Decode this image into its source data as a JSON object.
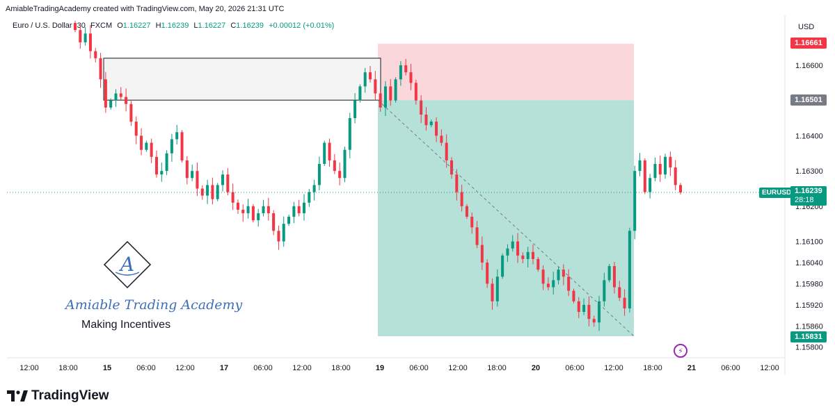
{
  "header": {
    "attribution": "AmiableTradingAcademy created with TradingView.com, May 20, 2026 21:31 UTC"
  },
  "legend": {
    "symbol": "Euro / U.S. Dollar",
    "interval": "30",
    "exchange": "FXCM",
    "open_label": "O",
    "open": "1.16227",
    "high_label": "H",
    "high": "1.16239",
    "low_label": "L",
    "low": "1.16227",
    "close_label": "C",
    "close": "1.16239",
    "change": "+0.00012 (+0.01%)"
  },
  "price_axis": {
    "currency": "USD",
    "ticks": [
      "1.16600",
      "1.16500",
      "1.16400",
      "1.16300",
      "1.16200",
      "1.16100",
      "1.16040",
      "1.15980",
      "1.15920",
      "1.15860",
      "1.15800"
    ],
    "stop_tag": "1.16661",
    "entry_tag": "1.16501",
    "target_tag": "1.15831",
    "symbol_tag": "EURUSD",
    "last_price_tag": "1.16239",
    "countdown": "28:18"
  },
  "time_axis": {
    "labels": [
      "12:00",
      "18:00",
      "15",
      "06:00",
      "12:00",
      "17",
      "06:00",
      "12:00",
      "18:00",
      "19",
      "06:00",
      "12:00",
      "18:00",
      "20",
      "06:00",
      "12:00",
      "18:00",
      "21",
      "06:00",
      "12:00"
    ]
  },
  "watermark": {
    "logo_letter": "A",
    "name": "Amiable Trading Academy",
    "tagline": "Making Incentives"
  },
  "branding": {
    "name": "TradingView"
  },
  "colors": {
    "up": "#089981",
    "down": "#f23645",
    "stop_zone": "#f7c9ce",
    "target_zone": "#a8dcd2",
    "supply_box_fill": "#f4f4f4",
    "last_price_line": "#089981",
    "entry_tag_bg": "#787b86"
  },
  "chart_data": {
    "type": "candlestick",
    "symbol": "EURUSD",
    "timeframe": "30",
    "ylim": [
      1.15778,
      1.167
    ],
    "x_labels": [
      "12:00",
      "18:00",
      "15",
      "06:00",
      "12:00",
      "17",
      "06:00",
      "12:00",
      "18:00",
      "19",
      "06:00",
      "12:00",
      "18:00",
      "20",
      "06:00",
      "12:00",
      "18:00",
      "21",
      "06:00",
      "12:00"
    ],
    "close_path": [
      1.167,
      1.16665,
      1.1669,
      1.1664,
      1.1662,
      1.1656,
      1.1648,
      1.165,
      1.1652,
      1.1651,
      1.1649,
      1.1644,
      1.164,
      1.1636,
      1.1638,
      1.1634,
      1.1629,
      1.163,
      1.1635,
      1.1639,
      1.1641,
      1.1633,
      1.1628,
      1.163,
      1.1625,
      1.1623,
      1.1626,
      1.1622,
      1.1626,
      1.1629,
      1.1624,
      1.1621,
      1.1619,
      1.1618,
      1.162,
      1.1616,
      1.1618,
      1.162,
      1.1618,
      1.1613,
      1.161,
      1.1615,
      1.1617,
      1.162,
      1.1618,
      1.1621,
      1.1624,
      1.1626,
      1.1632,
      1.1638,
      1.1633,
      1.163,
      1.1628,
      1.1636,
      1.1645,
      1.165,
      1.1654,
      1.1658,
      1.1656,
      1.1652,
      1.1648,
      1.1654,
      1.165,
      1.1656,
      1.166,
      1.1658,
      1.1655,
      1.165,
      1.1646,
      1.1643,
      1.1644,
      1.164,
      1.1638,
      1.1633,
      1.1629,
      1.1624,
      1.162,
      1.1617,
      1.1614,
      1.1609,
      1.1604,
      1.1598,
      1.1593,
      1.16,
      1.1606,
      1.1608,
      1.161,
      1.1606,
      1.1605,
      1.1607,
      1.1605,
      1.1602,
      1.1598,
      1.1597,
      1.1599,
      1.1602,
      1.16,
      1.1596,
      1.1593,
      1.159,
      1.1592,
      1.1588,
      1.1587,
      1.1593,
      1.1599,
      1.1603,
      1.1597,
      1.1594,
      1.1591,
      1.1613,
      1.163,
      1.1633,
      1.1624,
      1.1628,
      1.1632,
      1.1629,
      1.1634,
      1.1631,
      1.1626,
      1.16239
    ],
    "position": {
      "type": "short",
      "stop": 1.16661,
      "entry": 1.16501,
      "target": 1.15831
    },
    "supply_zone": {
      "top": 1.1662,
      "bottom": 1.16501
    },
    "last_price": 1.16239
  }
}
